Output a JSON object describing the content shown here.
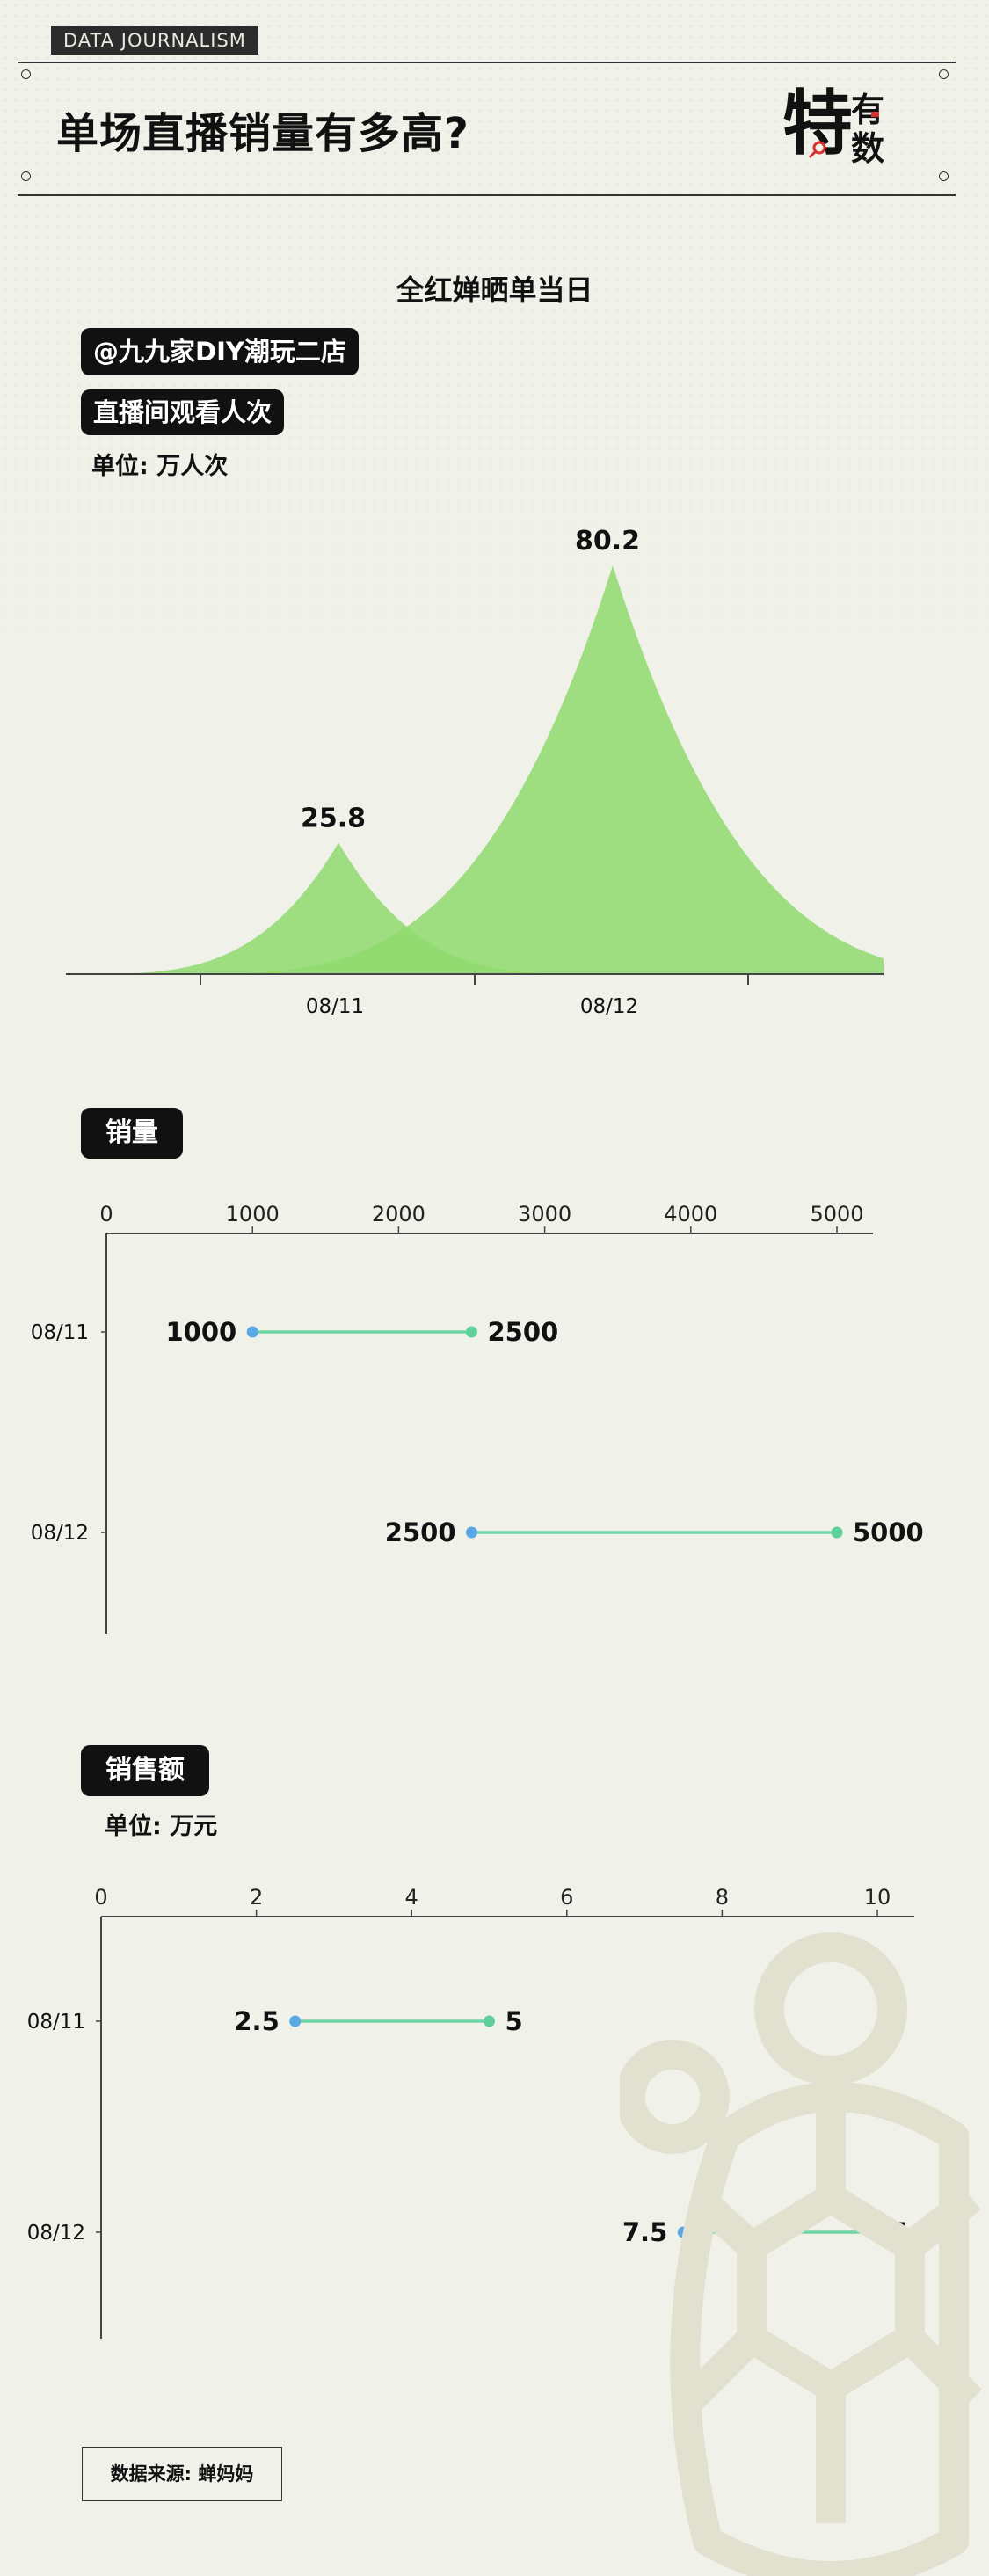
{
  "header": {
    "tag": "DATA JOURNALISM",
    "title": "单场直播销量有多高?",
    "logo_text": [
      "特",
      "有",
      "数"
    ]
  },
  "source": "数据来源: 蝉妈妈",
  "colors": {
    "area_fill": "#8fdb6e",
    "dot_low": "#5aa9e6",
    "dot_high": "#5fd09a",
    "line": "#6fd4a6"
  },
  "chart_data": [
    {
      "type": "area",
      "title": "全红婵晒单当日",
      "store_label": "@九九家DIY潮玩二店",
      "ylabel": "直播间观看人次",
      "unit": "单位: 万人次",
      "categories": [
        "08/11",
        "08/12"
      ],
      "values": [
        25.8,
        80.2
      ],
      "value_labels": [
        "25.8",
        "80.2"
      ],
      "ylim": [
        0,
        80.2
      ]
    },
    {
      "type": "dumbbell",
      "title": "销量",
      "categories": [
        "08/11",
        "08/12"
      ],
      "low": [
        1000,
        2500
      ],
      "high": [
        2500,
        5000
      ],
      "low_labels": [
        "1000",
        "2500"
      ],
      "high_labels": [
        "2500",
        "5000"
      ],
      "xlim": [
        0,
        5000
      ],
      "xticks": [
        "0",
        "1000",
        "2000",
        "3000",
        "4000",
        "5000"
      ]
    },
    {
      "type": "dumbbell",
      "title": "销售额",
      "unit": "单位: 万元",
      "categories": [
        "08/11",
        "08/12"
      ],
      "low": [
        2.5,
        7.5
      ],
      "high": [
        5,
        10
      ],
      "low_labels": [
        "2.5",
        "7.5"
      ],
      "high_labels": [
        "5",
        "10"
      ],
      "xlim": [
        0,
        10
      ],
      "xticks": [
        "0",
        "2",
        "4",
        "6",
        "8",
        "10"
      ]
    }
  ]
}
